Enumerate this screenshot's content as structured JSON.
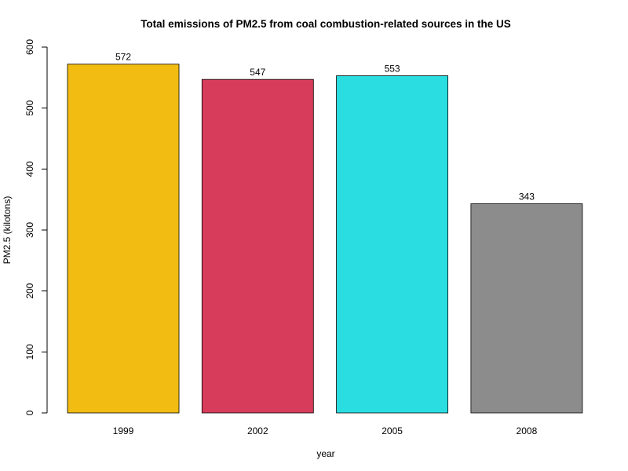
{
  "chart_data": {
    "type": "bar",
    "title": "Total emissions of PM2.5 from coal combustion-related sources in the US",
    "xlabel": "year",
    "ylabel": "PM2.5 (kilotons)",
    "categories": [
      "1999",
      "2002",
      "2005",
      "2008"
    ],
    "values": [
      572,
      547,
      553,
      343
    ],
    "data_labels": [
      "572",
      "547",
      "553",
      "343"
    ],
    "colors": [
      "#F2BC12",
      "#D73D5B",
      "#2ADDE0",
      "#8C8C8C"
    ],
    "ylim": [
      0,
      600
    ],
    "yticks": [
      0,
      100,
      200,
      300,
      400,
      500,
      600
    ],
    "grid": false,
    "legend": "none"
  }
}
